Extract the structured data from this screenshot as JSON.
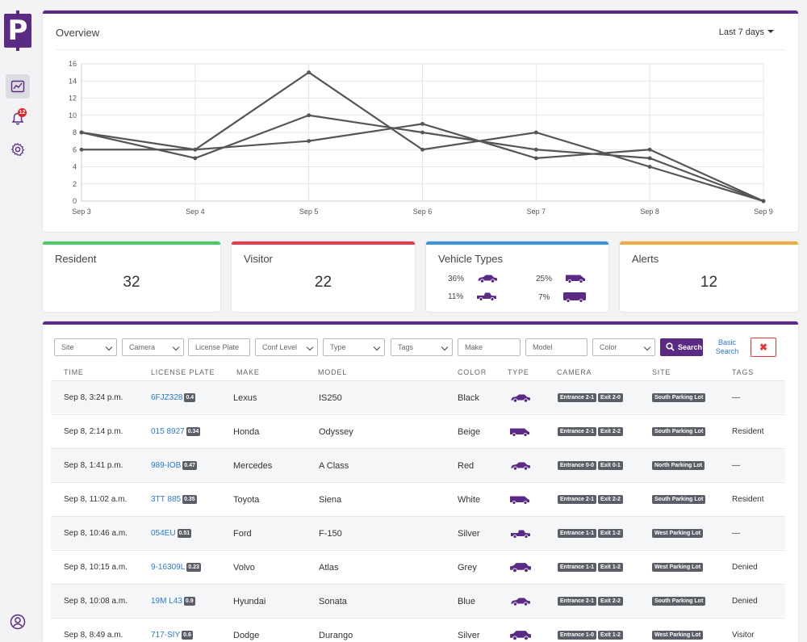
{
  "app": {
    "logo_letter": "P"
  },
  "sidebar": {
    "items": [
      {
        "name": "dashboard",
        "icon": "chart-line-icon",
        "active": true
      },
      {
        "name": "alerts",
        "icon": "bell-icon",
        "badge": "12"
      },
      {
        "name": "settings",
        "icon": "gear-icon"
      }
    ],
    "footer_icon": "user-circle-icon"
  },
  "overview": {
    "title": "Overview",
    "range_label": "Last 7 days"
  },
  "chart_data": {
    "type": "line",
    "title": "",
    "xlabel": "",
    "ylabel": "",
    "categories": [
      "Sep 3",
      "Sep 4",
      "Sep 5",
      "Sep 6",
      "Sep 7",
      "Sep 8",
      "Sep 9"
    ],
    "yticks": [
      0,
      2,
      4,
      6,
      8,
      10,
      12,
      14,
      16
    ],
    "ylim": [
      0,
      16
    ],
    "grid": true,
    "series": [
      {
        "values": [
          8,
          6,
          15,
          6,
          8,
          4,
          0
        ]
      },
      {
        "values": [
          6,
          6,
          7,
          9,
          5,
          6,
          0
        ]
      },
      {
        "values": [
          8,
          5,
          10,
          8,
          6,
          5,
          0
        ]
      }
    ],
    "line_color": "#555555"
  },
  "stats": {
    "resident": {
      "title": "Resident",
      "value": "32",
      "color": "#4cc76a"
    },
    "visitor": {
      "title": "Visitor",
      "value": "22",
      "color": "#e23b52"
    },
    "vehicle_types": {
      "title": "Vehicle Types",
      "color": "#3c93dc",
      "items": [
        {
          "pct": "36%",
          "icon": "sedan-icon"
        },
        {
          "pct": "25%",
          "icon": "van-icon"
        },
        {
          "pct": "11%",
          "icon": "pickup-truck-icon"
        },
        {
          "pct": "7%",
          "icon": "minivan-icon"
        }
      ]
    },
    "alerts": {
      "title": "Alerts",
      "value": "12",
      "color": "#f0ad3c"
    }
  },
  "filters": {
    "site": "Site",
    "camera": "Camera",
    "license_plate": "License Plate",
    "conf_level": "Conf Level",
    "type": "Type",
    "tags": "Tags",
    "make": "Make",
    "model": "Model",
    "color": "Color",
    "search_label": "Search",
    "basic_search_line1": "Basic",
    "basic_search_line2": "Search",
    "clear_label": "✖"
  },
  "table": {
    "headers": [
      "TIME",
      "LICENSE PLATE",
      "MAKE",
      "MODEL",
      "COLOR",
      "TYPE",
      "CAMERA",
      "SITE",
      "TAGS"
    ],
    "rows": [
      {
        "time": "Sep 8, 3:24 p.m.",
        "plate": "6FJZ328",
        "conf": "0.4",
        "make": "Lexus",
        "model": "IS250",
        "color": "Black",
        "type_icon": "sedan-icon",
        "cam1": "Entrance 2-1",
        "cam2": "Exit 2-0",
        "site": "South Parking Lot",
        "tag": "—"
      },
      {
        "time": "Sep 8, 2:14 p.m.",
        "plate": "015 8927",
        "conf": "0.34",
        "make": "Honda",
        "model": "Odyssey",
        "color": "Beige",
        "type_icon": "van-icon",
        "cam1": "Entrance 2-1",
        "cam2": "Exit 2-2",
        "site": "South Parking Lot",
        "tag": "Resident"
      },
      {
        "time": "Sep 8, 1:41 p.m.",
        "plate": "989-IOB",
        "conf": "0.47",
        "make": "Mercedes",
        "model": "A Class",
        "color": "Red",
        "type_icon": "sedan-icon",
        "cam1": "Entrance 0-0",
        "cam2": "Exit 0-1",
        "site": "North Parking Lot",
        "tag": "—"
      },
      {
        "time": "Sep 8, 11:02 a.m.",
        "plate": "3TT 885",
        "conf": "0.35",
        "make": "Toyota",
        "model": "Siena",
        "color": "White",
        "type_icon": "van-icon",
        "cam1": "Entrance 2-1",
        "cam2": "Exit 2-2",
        "site": "South Parking Lot",
        "tag": "Resident"
      },
      {
        "time": "Sep 8, 10:46 a.m.",
        "plate": "054EU",
        "conf": "0.51",
        "make": "Ford",
        "model": "F-150",
        "color": "Silver",
        "type_icon": "pickup-truck-icon",
        "cam1": "Entrance 1-1",
        "cam2": "Exit 1-2",
        "site": "West Parking Lot",
        "tag": "—"
      },
      {
        "time": "Sep 8, 10:15 a.m.",
        "plate": "9-16309L",
        "conf": "0.23",
        "make": "Volvo",
        "model": "Atlas",
        "color": "Grey",
        "type_icon": "suv-icon",
        "cam1": "Entrance 1-1",
        "cam2": "Exit 1-2",
        "site": "West Parking Lot",
        "tag": "Denied"
      },
      {
        "time": "Sep 8, 10:08 a.m.",
        "plate": "19M L43",
        "conf": "0.9",
        "make": "Hyundai",
        "model": "Sonata",
        "color": "Blue",
        "type_icon": "sedan-icon",
        "cam1": "Entrance 2-1",
        "cam2": "Exit 2-2",
        "site": "South Parking Lot",
        "tag": "Denied"
      },
      {
        "time": "Sep 8, 8:49 a.m.",
        "plate": "717-SIY",
        "conf": "0.6",
        "make": "Dodge",
        "model": "Durango",
        "color": "Silver",
        "type_icon": "suv-icon",
        "cam1": "Entrance 1-0",
        "cam2": "Exit 1-2",
        "site": "West Parking Lot",
        "tag": "Visitor"
      }
    ]
  }
}
